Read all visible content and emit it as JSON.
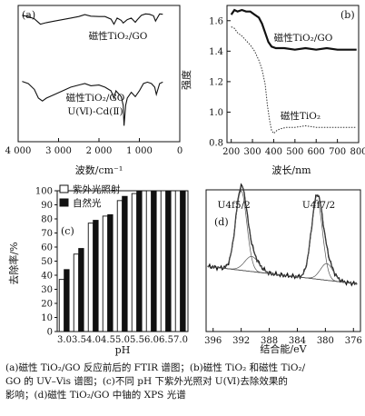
{
  "chart_data": [
    {
      "type": "line",
      "panel": "(a)",
      "xlabel": "波数/cm⁻¹",
      "x_ticks": [
        "4 000",
        "3 000",
        "2 000",
        "1 000",
        "0"
      ],
      "xlim": [
        4000,
        0
      ],
      "series": [
        {
          "name": "磁性TiO₂/GO",
          "x": [
            3900,
            3750,
            3600,
            3450,
            3300,
            3100,
            2900,
            2700,
            2500,
            2350,
            2200,
            2000,
            1850,
            1700,
            1630,
            1550,
            1450,
            1400,
            1300,
            1200,
            1100,
            1050,
            950,
            850,
            750,
            650,
            600,
            500,
            420
          ],
          "y": [
            0.93,
            0.9,
            0.84,
            0.7,
            0.74,
            0.78,
            0.82,
            0.86,
            0.9,
            0.95,
            0.91,
            0.9,
            0.9,
            0.83,
            0.7,
            0.86,
            0.8,
            0.73,
            0.82,
            0.86,
            0.75,
            0.82,
            0.93,
            0.97,
            0.96,
            0.92,
            0.78,
            0.97,
            0.96
          ]
        },
        {
          "name": "磁性TiO₂/GO U(Ⅵ)-Cd(Ⅱ)",
          "x": [
            3900,
            3750,
            3600,
            3500,
            3400,
            3300,
            3100,
            2900,
            2700,
            2500,
            2350,
            2200,
            2000,
            1850,
            1700,
            1630,
            1580,
            1500,
            1450,
            1400,
            1380,
            1340,
            1300,
            1200,
            1100,
            1000,
            900,
            800,
            700,
            620,
            580,
            500,
            420
          ],
          "y": [
            0.63,
            0.6,
            0.52,
            0.4,
            0.36,
            0.4,
            0.45,
            0.5,
            0.55,
            0.58,
            0.6,
            0.57,
            0.58,
            0.55,
            0.5,
            0.4,
            0.5,
            0.45,
            0.42,
            0.3,
            0.02,
            0.3,
            0.4,
            0.48,
            0.42,
            0.5,
            0.6,
            0.62,
            0.6,
            0.55,
            0.45,
            0.6,
            0.62
          ]
        }
      ]
    },
    {
      "type": "line",
      "panel": "(b)",
      "xlabel": "波长/nm",
      "ylabel": "强度",
      "xlim": [
        180,
        800
      ],
      "ylim": [
        0.8,
        1.7
      ],
      "x_ticks": [
        200,
        300,
        400,
        500,
        600,
        700,
        800
      ],
      "y_ticks": [
        0.8,
        1.0,
        1.2,
        1.4,
        1.6
      ],
      "series": [
        {
          "name": "磁性TiO₂/GO",
          "x": [
            200,
            215,
            230,
            250,
            270,
            290,
            310,
            330,
            345,
            360,
            375,
            390,
            410,
            450,
            500,
            550,
            600,
            650,
            700,
            750,
            790
          ],
          "y": [
            1.64,
            1.67,
            1.66,
            1.67,
            1.66,
            1.66,
            1.64,
            1.62,
            1.58,
            1.52,
            1.46,
            1.43,
            1.42,
            1.42,
            1.41,
            1.42,
            1.41,
            1.42,
            1.41,
            1.41,
            1.41
          ]
        },
        {
          "name": "磁性TiO₂",
          "x": [
            200,
            215,
            230,
            250,
            270,
            290,
            310,
            330,
            345,
            360,
            370,
            380,
            390,
            400,
            415,
            430,
            460,
            500,
            550,
            600,
            650,
            700,
            750,
            790
          ],
          "y": [
            1.56,
            1.55,
            1.52,
            1.5,
            1.47,
            1.44,
            1.4,
            1.34,
            1.28,
            1.18,
            1.05,
            0.95,
            0.88,
            0.86,
            0.88,
            0.89,
            0.9,
            0.9,
            0.91,
            0.9,
            0.9,
            0.9,
            0.9,
            0.9
          ]
        }
      ]
    },
    {
      "type": "bar",
      "panel": "(c)",
      "xlabel": "pH",
      "ylabel": "去除率/%",
      "categories": [
        "3.0",
        "3.5",
        "4.0",
        "4.5",
        "5.0",
        "5.5",
        "6.0",
        "6.5",
        "7.0"
      ],
      "ylim": [
        0,
        100
      ],
      "y_ticks": [
        0,
        10,
        20,
        30,
        40,
        50,
        60,
        70,
        80,
        90,
        100
      ],
      "series": [
        {
          "name": "紫外光照射",
          "values": [
            37,
            55,
            77,
            82,
            93,
            98,
            100,
            100,
            100
          ]
        },
        {
          "name": "自然光",
          "values": [
            44,
            59,
            79,
            83,
            96,
            100,
            100,
            100,
            100
          ]
        }
      ]
    },
    {
      "type": "line",
      "panel": "(d)",
      "xlabel": "结合能/eV",
      "xlim": [
        397,
        375
      ],
      "x_ticks": [
        396,
        392,
        388,
        384,
        380,
        376
      ],
      "annotations": [
        "U4f5/2",
        "U4f7/2"
      ],
      "peaks": [
        {
          "label": "U4f5/2",
          "x": 392.0,
          "height": 0.95
        },
        {
          "label": "U4f7/2",
          "x": 381.2,
          "height": 0.95
        }
      ]
    }
  ],
  "caption": {
    "line1": "(a)磁性 TiO₂/GO 反应前后的 FTIR 谱图；(b)磁性 TiO₂ 和磁性 TiO₂/",
    "line2": "GO 的 UV–Vis 谱图；(c)不同 pH 下紫外光照对 U(Ⅵ)去除效果的",
    "line3": "影响；(d)磁性 TiO₂/GO 中铀的 XPS 光谱"
  }
}
